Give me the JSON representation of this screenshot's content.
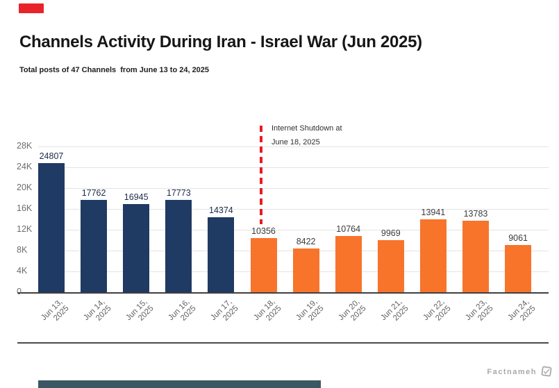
{
  "header": {
    "title": "Channels Activity During Iran - Israel War (Jun 2025)",
    "subtitle": "Total posts of 47 Channels  from June 13 to 24, 2025"
  },
  "chart_data": {
    "type": "bar",
    "title": "Channels Activity During Iran - Israel War (Jun 2025)",
    "subtitle": "Total posts of 47 Channels from June 13 to 24, 2025",
    "categories": [
      "Jun 13, 2025",
      "Jun 14, 2025",
      "Jun 15, 2025",
      "Jun 16, 2025",
      "Jun 17, 2025",
      "Jun 18, 2025",
      "Jun 19, 2025",
      "Jun 20, 2025",
      "Jun 21, 2025",
      "Jun 22, 2025",
      "Jun 23, 2025",
      "Jun 24, 2025"
    ],
    "category_lines": [
      [
        "Jun 13,",
        "2025"
      ],
      [
        "Jun 14,",
        "2025"
      ],
      [
        "Jun 15,",
        "2025"
      ],
      [
        "Jun 16,",
        "2025"
      ],
      [
        "Jun 17,",
        "2025"
      ],
      [
        "Jun 18,",
        "2025"
      ],
      [
        "Jun 19,",
        "2025"
      ],
      [
        "Jun 20,",
        "2025"
      ],
      [
        "Jun 21,",
        "2025"
      ],
      [
        "Jun 22,",
        "2025"
      ],
      [
        "Jun 23,",
        "2025"
      ],
      [
        "Jun 24,",
        "2025"
      ]
    ],
    "values": [
      24807,
      17762,
      16945,
      17773,
      14374,
      10356,
      8422,
      10764,
      9969,
      13941,
      13783,
      9061
    ],
    "bar_phase": [
      "pre",
      "pre",
      "pre",
      "pre",
      "pre",
      "post",
      "post",
      "post",
      "post",
      "post",
      "post",
      "post"
    ],
    "xlabel": "",
    "ylabel": "",
    "ylim": [
      0,
      28000
    ],
    "ytick_labels": [
      "28K",
      "24K",
      "20K",
      "16K",
      "12K",
      "8K",
      "4K",
      "0"
    ],
    "grid": true,
    "legend": "none",
    "annotation": {
      "line1": "Internet Shutdown at",
      "line2": "June 18, 2025"
    },
    "colors": {
      "pre_shutdown_bar": "#1f3a63",
      "post_shutdown_bar": "#f8742a",
      "annotation_line": "#ea1b22",
      "gridline": "#e3e3e3",
      "axis_line": "#3f3f3f",
      "tick_label": "#6d6d6d",
      "value_label_pre": "#1b2a47",
      "value_label_post": "#3c3c3c",
      "brand_accent": "#e8242a",
      "footer_bar": "#3a5864",
      "watermark": "#a9a9a9",
      "divider": "#4a4a4a",
      "title_text": "#161616",
      "annotation_text": "#2f2f2f"
    }
  },
  "footer": {
    "watermark": "Factnameh",
    "logo_icon": "factnameh-stamp-icon"
  }
}
